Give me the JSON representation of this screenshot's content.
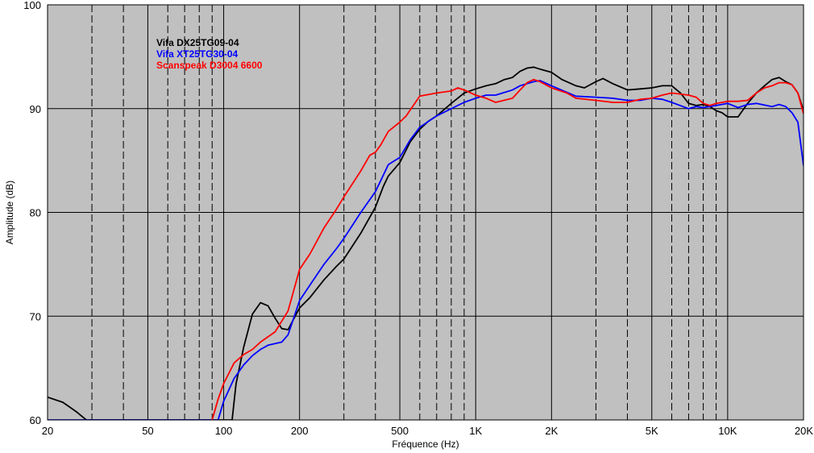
{
  "chart_data": {
    "type": "line",
    "xlabel": "Fréquence (Hz)",
    "ylabel": "Amplitude (dB)",
    "x_scale": "log",
    "xlim": [
      20,
      20000
    ],
    "ylim": [
      60,
      100
    ],
    "grid": true,
    "plot_background": "#c0c0c0",
    "legend_position": "top-left",
    "x_ticks": [
      {
        "value": 20,
        "label": "20"
      },
      {
        "value": 50,
        "label": "50"
      },
      {
        "value": 100,
        "label": "100"
      },
      {
        "value": 200,
        "label": "200"
      },
      {
        "value": 500,
        "label": "500"
      },
      {
        "value": 1000,
        "label": "1K"
      },
      {
        "value": 2000,
        "label": "2K"
      },
      {
        "value": 5000,
        "label": "5K"
      },
      {
        "value": 10000,
        "label": "10K"
      },
      {
        "value": 20000,
        "label": "20K"
      }
    ],
    "y_ticks": [
      {
        "value": 60,
        "label": "60"
      },
      {
        "value": 70,
        "label": "70"
      },
      {
        "value": 80,
        "label": "80"
      },
      {
        "value": 90,
        "label": "90"
      },
      {
        "value": 100,
        "label": "100"
      }
    ],
    "series": [
      {
        "name": "Vifa DX25TG09-04",
        "color": "#000000",
        "points": [
          [
            20,
            62.2
          ],
          [
            23,
            61.7
          ],
          [
            26,
            60.8
          ],
          [
            28.5,
            60
          ],
          [
            108,
            60
          ],
          [
            112,
            63.5
          ],
          [
            120,
            67
          ],
          [
            130,
            70.2
          ],
          [
            140,
            71.3
          ],
          [
            150,
            71.0
          ],
          [
            160,
            69.8
          ],
          [
            170,
            68.8
          ],
          [
            180,
            68.7
          ],
          [
            200,
            70.8
          ],
          [
            220,
            71.8
          ],
          [
            250,
            73.5
          ],
          [
            280,
            74.8
          ],
          [
            300,
            75.5
          ],
          [
            350,
            78.0
          ],
          [
            400,
            80.5
          ],
          [
            430,
            82.5
          ],
          [
            450,
            83.5
          ],
          [
            500,
            84.8
          ],
          [
            550,
            86.8
          ],
          [
            600,
            88.0
          ],
          [
            650,
            88.8
          ],
          [
            700,
            89.3
          ],
          [
            800,
            90.5
          ],
          [
            900,
            91.5
          ],
          [
            1000,
            91.9
          ],
          [
            1100,
            92.2
          ],
          [
            1200,
            92.4
          ],
          [
            1300,
            92.8
          ],
          [
            1400,
            93.0
          ],
          [
            1500,
            93.6
          ],
          [
            1600,
            93.9
          ],
          [
            1700,
            94.0
          ],
          [
            1800,
            93.8
          ],
          [
            2000,
            93.5
          ],
          [
            2200,
            92.8
          ],
          [
            2500,
            92.2
          ],
          [
            2700,
            92.0
          ],
          [
            3000,
            92.6
          ],
          [
            3200,
            92.9
          ],
          [
            3500,
            92.4
          ],
          [
            4000,
            91.8
          ],
          [
            4500,
            91.9
          ],
          [
            5000,
            92.0
          ],
          [
            5500,
            92.2
          ],
          [
            6000,
            92.2
          ],
          [
            6500,
            91.5
          ],
          [
            7000,
            90.5
          ],
          [
            7500,
            90.3
          ],
          [
            8000,
            90.4
          ],
          [
            8500,
            90.2
          ],
          [
            9000,
            89.8
          ],
          [
            9500,
            89.6
          ],
          [
            10000,
            89.2
          ],
          [
            11000,
            89.2
          ],
          [
            12000,
            90.5
          ],
          [
            13000,
            91.5
          ],
          [
            14000,
            92.2
          ],
          [
            15000,
            92.8
          ],
          [
            16000,
            93.0
          ],
          [
            17000,
            92.6
          ],
          [
            18000,
            92.3
          ],
          [
            19000,
            91.5
          ],
          [
            20000,
            89.8
          ]
        ]
      },
      {
        "name": "Vifa XT25TG30-04",
        "color": "#0000ff",
        "points": [
          [
            20,
            60
          ],
          [
            95,
            60
          ],
          [
            100,
            61.8
          ],
          [
            110,
            64.0
          ],
          [
            120,
            65.3
          ],
          [
            130,
            66.2
          ],
          [
            140,
            66.8
          ],
          [
            150,
            67.2
          ],
          [
            170,
            67.5
          ],
          [
            180,
            68.2
          ],
          [
            200,
            71.5
          ],
          [
            220,
            73.0
          ],
          [
            250,
            75.0
          ],
          [
            280,
            76.5
          ],
          [
            300,
            77.5
          ],
          [
            350,
            80.0
          ],
          [
            400,
            82.0
          ],
          [
            450,
            84.6
          ],
          [
            500,
            85.3
          ],
          [
            550,
            87.0
          ],
          [
            600,
            88.2
          ],
          [
            700,
            89.3
          ],
          [
            800,
            90.0
          ],
          [
            900,
            90.6
          ],
          [
            1000,
            91.0
          ],
          [
            1100,
            91.3
          ],
          [
            1200,
            91.3
          ],
          [
            1400,
            91.8
          ],
          [
            1500,
            92.2
          ],
          [
            1700,
            92.6
          ],
          [
            1800,
            92.7
          ],
          [
            2000,
            92.2
          ],
          [
            2500,
            91.2
          ],
          [
            3000,
            91.1
          ],
          [
            3500,
            91.0
          ],
          [
            4000,
            90.8
          ],
          [
            4500,
            90.8
          ],
          [
            5000,
            91.0
          ],
          [
            5500,
            90.9
          ],
          [
            6000,
            90.6
          ],
          [
            7000,
            90.0
          ],
          [
            7500,
            90.2
          ],
          [
            8000,
            90.1
          ],
          [
            9000,
            90.3
          ],
          [
            10000,
            90.5
          ],
          [
            11000,
            90.1
          ],
          [
            12000,
            90.4
          ],
          [
            13000,
            90.5
          ],
          [
            15000,
            90.2
          ],
          [
            16000,
            90.4
          ],
          [
            17000,
            90.2
          ],
          [
            18000,
            89.6
          ],
          [
            19000,
            88.7
          ],
          [
            20000,
            84.5
          ]
        ]
      },
      {
        "name": "Scanspeak D3004 6600",
        "color": "#ff0000",
        "points": [
          [
            90,
            60
          ],
          [
            95,
            62.0
          ],
          [
            100,
            63.5
          ],
          [
            110,
            65.5
          ],
          [
            120,
            66.3
          ],
          [
            130,
            66.8
          ],
          [
            140,
            67.5
          ],
          [
            160,
            68.5
          ],
          [
            180,
            70.5
          ],
          [
            200,
            74.5
          ],
          [
            220,
            76.0
          ],
          [
            250,
            78.5
          ],
          [
            280,
            80.3
          ],
          [
            300,
            81.5
          ],
          [
            350,
            84.0
          ],
          [
            380,
            85.5
          ],
          [
            400,
            85.8
          ],
          [
            420,
            86.5
          ],
          [
            450,
            87.8
          ],
          [
            500,
            88.7
          ],
          [
            530,
            89.3
          ],
          [
            600,
            91.2
          ],
          [
            700,
            91.5
          ],
          [
            800,
            91.7
          ],
          [
            850,
            92.0
          ],
          [
            900,
            91.8
          ],
          [
            1000,
            91.3
          ],
          [
            1100,
            91.0
          ],
          [
            1200,
            90.6
          ],
          [
            1400,
            91.0
          ],
          [
            1500,
            91.8
          ],
          [
            1600,
            92.5
          ],
          [
            1700,
            92.8
          ],
          [
            1800,
            92.6
          ],
          [
            2000,
            92.0
          ],
          [
            2300,
            91.5
          ],
          [
            2500,
            91.0
          ],
          [
            3000,
            90.8
          ],
          [
            3500,
            90.6
          ],
          [
            4000,
            90.6
          ],
          [
            4500,
            90.9
          ],
          [
            5000,
            91.0
          ],
          [
            5500,
            91.3
          ],
          [
            6000,
            91.5
          ],
          [
            7000,
            91.3
          ],
          [
            7500,
            91.1
          ],
          [
            8000,
            90.5
          ],
          [
            8500,
            90.3
          ],
          [
            9000,
            90.5
          ],
          [
            10000,
            90.7
          ],
          [
            11000,
            90.7
          ],
          [
            12000,
            90.8
          ],
          [
            13000,
            91.5
          ],
          [
            14000,
            92.0
          ],
          [
            15000,
            92.2
          ],
          [
            16000,
            92.5
          ],
          [
            17000,
            92.5
          ],
          [
            18000,
            92.3
          ],
          [
            19000,
            91.5
          ],
          [
            20000,
            89.5
          ]
        ]
      }
    ]
  }
}
